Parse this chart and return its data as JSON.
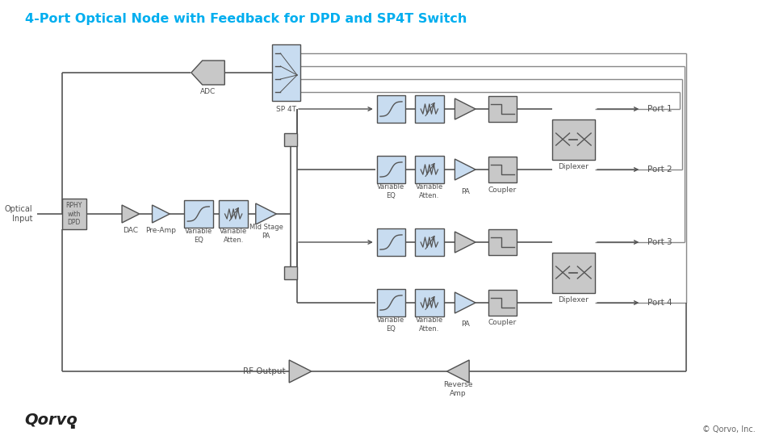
{
  "title": "4-Port Optical Node with Feedback for DPD and SP4T Switch",
  "title_color": "#00AEEF",
  "bg_color": "#ffffff",
  "light_blue": "#C8DCF0",
  "light_gray": "#C8C8C8",
  "dark_gray": "#505050",
  "footer_text": "© Qorvo, Inc.",
  "port_labels": [
    "Port 1",
    "Port 2",
    "Port 3",
    "Port 4"
  ]
}
